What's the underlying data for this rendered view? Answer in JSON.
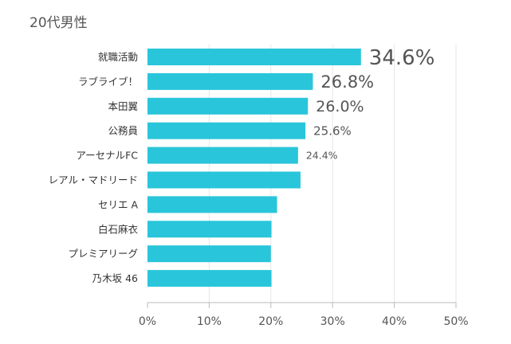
{
  "chart_data": {
    "type": "bar",
    "orientation": "horizontal",
    "title": "20代男性",
    "categories": [
      "就職活動",
      "ラブライブ！",
      "本田翼",
      "公務員",
      "アーセナルFC",
      "レアル・マドリード",
      "セリエ A",
      "白石麻衣",
      "プレミアリーグ",
      "乃木坂 46"
    ],
    "values": [
      34.6,
      26.8,
      26.0,
      25.6,
      24.4,
      24.8,
      21.0,
      20.1,
      20.0,
      20.1
    ],
    "value_labels": [
      "34.6%",
      "26.8%",
      "26.0%",
      "25.6%",
      "24.4%",
      null,
      null,
      null,
      null,
      null
    ],
    "xlim": [
      0,
      50
    ],
    "xticks": [
      0,
      10,
      20,
      30,
      40,
      50
    ],
    "xtick_labels": [
      "0%",
      "10%",
      "20%",
      "30%",
      "40%",
      "50%"
    ],
    "xlabel": "",
    "ylabel": "",
    "grid": true,
    "bar_color": "#29c5da",
    "grid_color": "#e6e6e6",
    "axis_color": "#bbbbbb"
  }
}
